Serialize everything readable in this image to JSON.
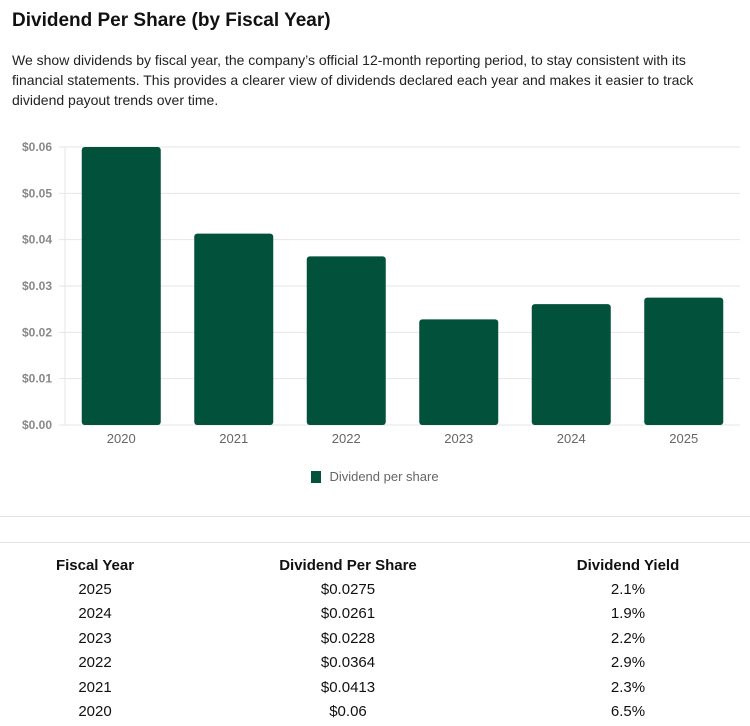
{
  "title": "Dividend Per Share (by Fiscal Year)",
  "description": "We show dividends by fiscal year, the company’s official 12-month reporting period, to stay consistent with its financial statements. This provides a clearer view of dividends declared each year and makes it easier to track dividend payout trends over time.",
  "chart_data": {
    "type": "bar",
    "categories": [
      "2020",
      "2021",
      "2022",
      "2023",
      "2024",
      "2025"
    ],
    "series": [
      {
        "name": "Dividend per share",
        "values": [
          0.06,
          0.0413,
          0.0364,
          0.0228,
          0.0261,
          0.0275
        ]
      }
    ],
    "ylim": [
      0,
      0.06
    ],
    "yticks": [
      "$0.00",
      "$0.01",
      "$0.02",
      "$0.03",
      "$0.04",
      "$0.05",
      "$0.06"
    ],
    "grid": true,
    "legend": "bottom",
    "color": "#02513a"
  },
  "table": {
    "headers": [
      "Fiscal Year",
      "Dividend Per Share",
      "Dividend Yield"
    ],
    "rows": [
      [
        "2025",
        "$0.0275",
        "2.1%"
      ],
      [
        "2024",
        "$0.0261",
        "1.9%"
      ],
      [
        "2023",
        "$0.0228",
        "2.2%"
      ],
      [
        "2022",
        "$0.0364",
        "2.9%"
      ],
      [
        "2021",
        "$0.0413",
        "2.3%"
      ],
      [
        "2020",
        "$0.06",
        "6.5%"
      ]
    ]
  }
}
